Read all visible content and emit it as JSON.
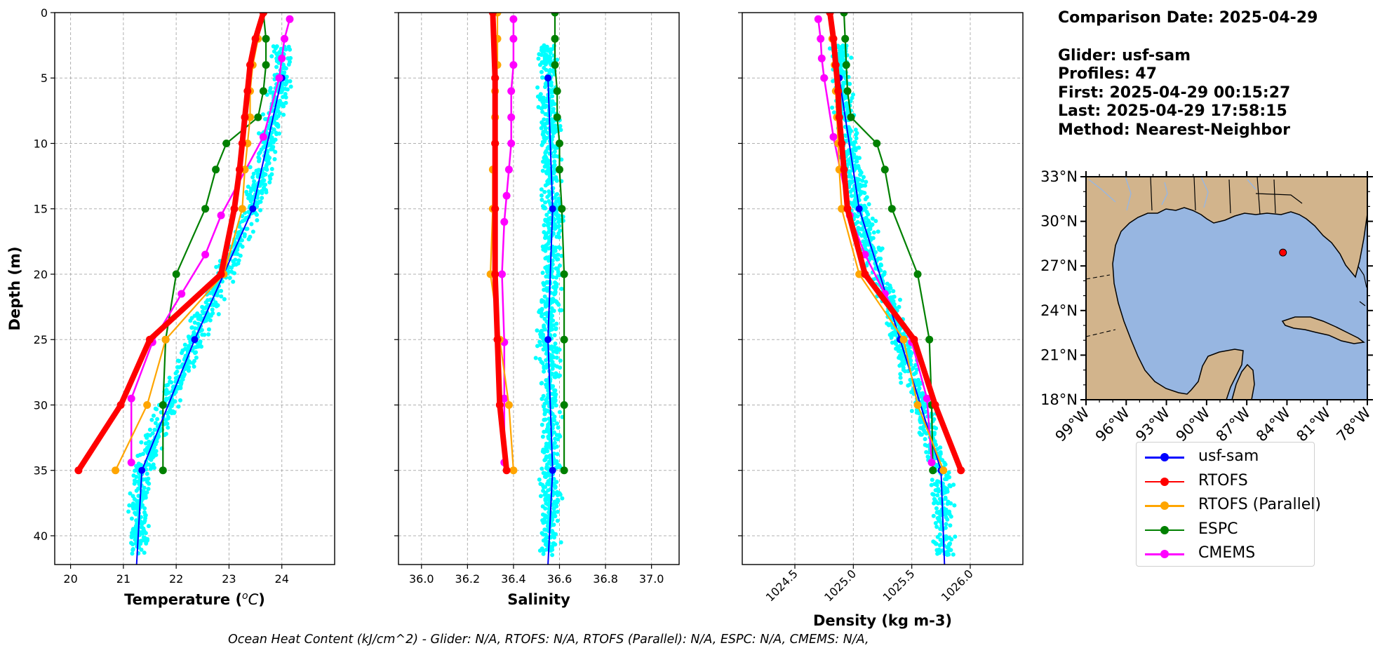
{
  "info": {
    "comparison_date": "Comparison Date: 2025-04-29",
    "glider": "Glider: usf-sam",
    "profiles": "Profiles: 47",
    "first": "First: 2025-04-29 00:15:27",
    "last": "Last: 2025-04-29 17:58:15",
    "method": "Method: Nearest-Neighbor"
  },
  "footer": "Ocean Heat Content (kJ/cm^2) - Glider: N/A,  RTOFS: N/A,  RTOFS (Parallel): N/A,  ESPC: N/A,  CMEMS: N/A,",
  "legend": [
    {
      "label": "usf-sam",
      "color": "#0000ff"
    },
    {
      "label": "RTOFS",
      "color": "#ff0000"
    },
    {
      "label": "RTOFS (Parallel)",
      "color": "#ffa500"
    },
    {
      "label": "ESPC",
      "color": "#008000"
    },
    {
      "label": "CMEMS",
      "color": "#ff00ff"
    }
  ],
  "colors": {
    "glider_scatter": "#00ffff",
    "land": "#d2b48c",
    "ocean": "#97b6e1",
    "grid": "#b0b0b0"
  },
  "chart_data": [
    {
      "type": "line",
      "xlabel": "Temperature (°C)",
      "ylabel": "Depth (m)",
      "xlim": [
        19.7,
        25.0
      ],
      "ylim": [
        42.2,
        0
      ],
      "xticks": [
        20,
        21,
        22,
        23,
        24
      ],
      "yticks": [
        0,
        5,
        10,
        15,
        20,
        25,
        30,
        35,
        40
      ],
      "grid": true,
      "glider_scatter": {
        "depth_range": [
          2.5,
          41.5
        ],
        "x_range": [
          20.8,
          24.5
        ]
      },
      "series": [
        {
          "name": "usf-sam",
          "depth": [
            5,
            15,
            25,
            35,
            42.2
          ],
          "values": [
            24.0,
            23.45,
            22.35,
            21.35,
            21.25
          ]
        },
        {
          "name": "RTOFS",
          "depth": [
            0,
            2,
            4,
            6,
            8,
            10,
            12,
            15,
            20,
            25,
            30,
            35
          ],
          "values": [
            23.65,
            23.5,
            23.4,
            23.35,
            23.3,
            23.25,
            23.2,
            23.1,
            22.85,
            21.5,
            20.95,
            20.15
          ]
        },
        {
          "name": "RTOFS (Parallel)",
          "depth": [
            0,
            2,
            4,
            6,
            8,
            10,
            12,
            15,
            20,
            25,
            30,
            35
          ],
          "values": [
            23.65,
            23.55,
            23.45,
            23.4,
            23.4,
            23.35,
            23.3,
            23.25,
            22.9,
            21.8,
            21.45,
            20.85
          ]
        },
        {
          "name": "ESPC",
          "depth": [
            0,
            2,
            4,
            6,
            8,
            10,
            12,
            15,
            20,
            25,
            30,
            35
          ],
          "values": [
            23.65,
            23.7,
            23.7,
            23.65,
            23.55,
            22.95,
            22.75,
            22.55,
            22.0,
            21.8,
            21.75,
            21.75
          ]
        },
        {
          "name": "CMEMS",
          "depth": [
            0.5,
            2,
            3.5,
            5,
            9.5,
            15.5,
            18.5,
            21.5,
            25.2,
            29.5,
            34.4
          ],
          "values": [
            24.15,
            24.05,
            24.0,
            23.95,
            23.65,
            22.85,
            22.55,
            22.1,
            21.55,
            21.15,
            21.15
          ]
        }
      ]
    },
    {
      "type": "line",
      "xlabel": "Salinity",
      "ylabel": "",
      "xlim": [
        35.9,
        37.12
      ],
      "ylim": [
        42.2,
        0
      ],
      "xticks": [
        36.0,
        36.2,
        36.4,
        36.6,
        36.8,
        37.0
      ],
      "yticks": [
        0,
        5,
        10,
        15,
        20,
        25,
        30,
        35,
        40
      ],
      "grid": true,
      "glider_scatter": {
        "depth_range": [
          2.5,
          41.5
        ],
        "x_range": [
          36.15,
          36.87
        ]
      },
      "series": [
        {
          "name": "usf-sam",
          "depth": [
            5,
            15,
            25,
            35,
            42.2
          ],
          "values": [
            36.55,
            36.57,
            36.55,
            36.57,
            36.55
          ]
        },
        {
          "name": "RTOFS",
          "depth": [
            0,
            5,
            10,
            15,
            20,
            25,
            30,
            35
          ],
          "values": [
            36.31,
            36.32,
            36.32,
            36.32,
            36.32,
            36.33,
            36.34,
            36.37
          ]
        },
        {
          "name": "RTOFS (Parallel)",
          "depth": [
            0,
            2,
            4,
            6,
            8,
            10,
            12,
            15,
            20,
            25,
            30,
            35
          ],
          "values": [
            36.33,
            36.33,
            36.33,
            36.32,
            36.32,
            36.32,
            36.31,
            36.31,
            36.3,
            36.34,
            36.38,
            36.4
          ]
        },
        {
          "name": "ESPC",
          "depth": [
            0,
            2,
            4,
            6,
            8,
            10,
            12,
            15,
            20,
            25,
            30,
            35
          ],
          "values": [
            36.58,
            36.58,
            36.58,
            36.59,
            36.59,
            36.6,
            36.6,
            36.61,
            36.62,
            36.62,
            36.62,
            36.62
          ]
        },
        {
          "name": "CMEMS",
          "depth": [
            0.5,
            2,
            4,
            6,
            8,
            10,
            12,
            14,
            16,
            20,
            25.2,
            29.5,
            34.4
          ],
          "values": [
            36.4,
            36.4,
            36.4,
            36.39,
            36.39,
            36.39,
            36.38,
            36.37,
            36.36,
            36.35,
            36.36,
            36.36,
            36.36
          ]
        }
      ]
    },
    {
      "type": "line",
      "xlabel": "Density (kg m-3)",
      "ylabel": "",
      "xlim": [
        1024.05,
        1026.45
      ],
      "ylim": [
        42.2,
        0
      ],
      "xticks": [
        1024.5,
        1025.0,
        1025.5,
        1026.0
      ],
      "yticks": [
        0,
        5,
        10,
        15,
        20,
        25,
        30,
        35,
        40
      ],
      "grid": true,
      "glider_scatter": {
        "depth_range": [
          2.5,
          41.5
        ],
        "x_range": [
          1024.6,
          1025.95
        ]
      },
      "series": [
        {
          "name": "usf-sam",
          "depth": [
            5,
            15,
            25,
            35,
            42.2
          ],
          "values": [
            1024.88,
            1025.05,
            1025.4,
            1025.75,
            1025.78
          ]
        },
        {
          "name": "RTOFS",
          "depth": [
            0,
            2,
            4,
            6,
            8,
            10,
            12,
            15,
            20,
            25,
            30,
            35
          ],
          "values": [
            1024.8,
            1024.83,
            1024.85,
            1024.87,
            1024.88,
            1024.9,
            1024.92,
            1024.95,
            1025.1,
            1025.52,
            1025.7,
            1025.92
          ]
        },
        {
          "name": "RTOFS (Parallel)",
          "depth": [
            0,
            2,
            4,
            6,
            8,
            10,
            12,
            15,
            20,
            25,
            30,
            35
          ],
          "values": [
            1024.8,
            1024.82,
            1024.84,
            1024.85,
            1024.86,
            1024.87,
            1024.88,
            1024.9,
            1025.05,
            1025.43,
            1025.55,
            1025.77
          ]
        },
        {
          "name": "ESPC",
          "depth": [
            0,
            2,
            4,
            6,
            8,
            10,
            12,
            15,
            20,
            25,
            30,
            35
          ],
          "values": [
            1024.92,
            1024.93,
            1024.94,
            1024.95,
            1024.98,
            1025.2,
            1025.27,
            1025.33,
            1025.55,
            1025.65,
            1025.67,
            1025.68
          ]
        },
        {
          "name": "CMEMS",
          "depth": [
            0.5,
            2,
            3.5,
            5,
            9.5,
            15.5,
            18.5,
            21.5,
            25.2,
            29.5,
            34.4
          ],
          "values": [
            1024.7,
            1024.72,
            1024.73,
            1024.75,
            1024.83,
            1024.97,
            1025.1,
            1025.27,
            1025.5,
            1025.63,
            1025.67
          ]
        }
      ]
    }
  ],
  "map": {
    "lat_ticks": [
      "33°N",
      "30°N",
      "27°N",
      "24°N",
      "21°N",
      "18°N"
    ],
    "lon_ticks": [
      "99°W",
      "96°W",
      "93°W",
      "90°W",
      "87°W",
      "84°W",
      "81°W",
      "78°W"
    ],
    "extent": {
      "lon": [
        -99,
        -78
      ],
      "lat": [
        18,
        33
      ]
    },
    "marker": {
      "lon": -84.3,
      "lat": 27.9,
      "color": "#ff0000"
    }
  }
}
